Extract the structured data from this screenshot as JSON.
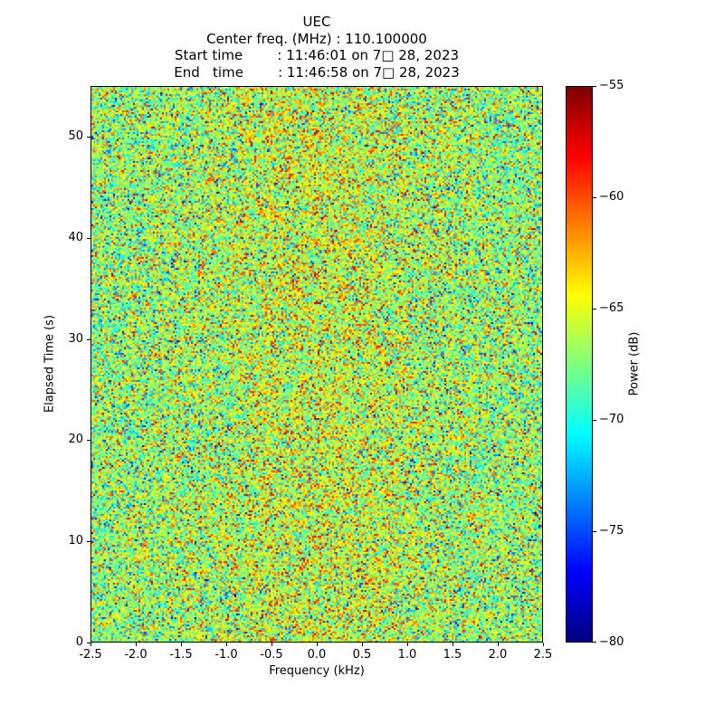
{
  "title_block": {
    "title": "UEC",
    "line_center_freq": "Center freq. (MHz) : 110.100000",
    "line_start_time": "Start time        : 11:46:01 on 7□ 28, 2023",
    "line_end_time": "End   time        : 11:46:58 on 7□ 28, 2023"
  },
  "chart_data": {
    "type": "heatmap",
    "title": "UEC",
    "subtitle_lines": [
      "Center freq. (MHz) : 110.100000",
      "Start time        : 11:46:01 on 7□ 28, 2023",
      "End   time        : 11:46:58 on 7□ 28, 2023"
    ],
    "xlabel": "Frequency (kHz)",
    "ylabel": "Elapsed Time (s)",
    "xlim": [
      -2.5,
      2.5
    ],
    "ylim": [
      0,
      55
    ],
    "x_tick_values": [
      -2.5,
      -2.0,
      -1.5,
      -1.0,
      -0.5,
      0.0,
      0.5,
      1.0,
      1.5,
      2.0,
      2.5
    ],
    "x_tick_labels": [
      "-2.5",
      "-2.0",
      "-1.5",
      "-1.0",
      "-0.5",
      "0.0",
      "0.5",
      "1.0",
      "1.5",
      "2.0",
      "2.5"
    ],
    "y_tick_values": [
      0,
      10,
      20,
      30,
      40,
      50
    ],
    "y_tick_labels": [
      "0",
      "10",
      "20",
      "30",
      "40",
      "50"
    ],
    "grid": false,
    "colorbar": {
      "label": "Power (dB)",
      "vmin": -80,
      "vmax": -55,
      "tick_values": [
        -55,
        -60,
        -65,
        -70,
        -75,
        -80
      ],
      "tick_labels": [
        "−55",
        "−60",
        "−65",
        "−70",
        "−75",
        "−80"
      ],
      "colormap": "jet",
      "position": "right"
    },
    "noise_model": {
      "description": "uniform random RF noise floor across full band, no discrete signal visible; fine-grained speckle mostly cyan-green-yellow with sparse dark blue and red outliers, slightly warmer near center frequency",
      "mean_db": -67,
      "std_db": 3.8,
      "center_boost_db": 1.5,
      "center_boost_sigma_khz": 1.0,
      "seed": 20230728
    }
  }
}
